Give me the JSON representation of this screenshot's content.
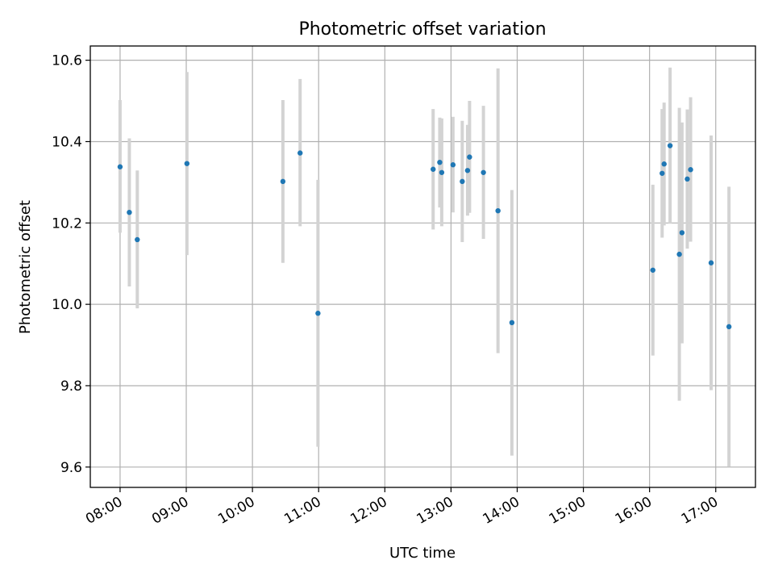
{
  "chart_data": {
    "type": "scatter",
    "title": "Photometric offset variation",
    "xlabel": "UTC time",
    "ylabel": "Photometric offset",
    "x_unit": "hours (UTC)",
    "xlim": [
      7.55,
      17.6
    ],
    "ylim": [
      9.55,
      10.635
    ],
    "grid": true,
    "x_ticks": [
      {
        "value": 8,
        "label": "08:00"
      },
      {
        "value": 9,
        "label": "09:00"
      },
      {
        "value": 10,
        "label": "10:00"
      },
      {
        "value": 11,
        "label": "11:00"
      },
      {
        "value": 12,
        "label": "12:00"
      },
      {
        "value": 13,
        "label": "13:00"
      },
      {
        "value": 14,
        "label": "14:00"
      },
      {
        "value": 15,
        "label": "15:00"
      },
      {
        "value": 16,
        "label": "16:00"
      },
      {
        "value": 17,
        "label": "17:00"
      }
    ],
    "y_ticks": [
      {
        "value": 9.6,
        "label": "9.6"
      },
      {
        "value": 9.8,
        "label": "9.8"
      },
      {
        "value": 10.0,
        "label": "10.0"
      },
      {
        "value": 10.2,
        "label": "10.2"
      },
      {
        "value": 10.4,
        "label": "10.4"
      },
      {
        "value": 10.6,
        "label": "10.6"
      }
    ],
    "series": [
      {
        "name": "offset",
        "color": "#1f77b4",
        "errorbar_color": "#d3d3d3",
        "points": [
          {
            "x": 8.0,
            "y": 10.338,
            "lo": 10.176,
            "hi": 10.502
          },
          {
            "x": 8.14,
            "y": 10.226,
            "lo": 10.044,
            "hi": 10.408
          },
          {
            "x": 8.26,
            "y": 10.159,
            "lo": 9.99,
            "hi": 10.329
          },
          {
            "x": 9.01,
            "y": 10.346,
            "lo": 10.121,
            "hi": 10.571
          },
          {
            "x": 10.46,
            "y": 10.302,
            "lo": 10.102,
            "hi": 10.502
          },
          {
            "x": 10.72,
            "y": 10.372,
            "lo": 10.192,
            "hi": 10.554
          },
          {
            "x": 10.99,
            "y": 9.978,
            "lo": 9.65,
            "hi": 10.306
          },
          {
            "x": 12.73,
            "y": 10.332,
            "lo": 10.184,
            "hi": 10.48
          },
          {
            "x": 12.83,
            "y": 10.349,
            "lo": 10.238,
            "hi": 10.459
          },
          {
            "x": 12.86,
            "y": 10.324,
            "lo": 10.192,
            "hi": 10.457
          },
          {
            "x": 13.03,
            "y": 10.343,
            "lo": 10.226,
            "hi": 10.461
          },
          {
            "x": 13.17,
            "y": 10.302,
            "lo": 10.153,
            "hi": 10.451
          },
          {
            "x": 13.25,
            "y": 10.329,
            "lo": 10.218,
            "hi": 10.441
          },
          {
            "x": 13.28,
            "y": 10.362,
            "lo": 10.225,
            "hi": 10.5
          },
          {
            "x": 13.49,
            "y": 10.324,
            "lo": 10.161,
            "hi": 10.488
          },
          {
            "x": 13.71,
            "y": 10.23,
            "lo": 9.88,
            "hi": 10.58
          },
          {
            "x": 13.92,
            "y": 9.955,
            "lo": 9.628,
            "hi": 10.281
          },
          {
            "x": 16.05,
            "y": 10.084,
            "lo": 9.874,
            "hi": 10.294
          },
          {
            "x": 16.19,
            "y": 10.322,
            "lo": 10.164,
            "hi": 10.48
          },
          {
            "x": 16.22,
            "y": 10.345,
            "lo": 10.194,
            "hi": 10.496
          },
          {
            "x": 16.31,
            "y": 10.39,
            "lo": 10.198,
            "hi": 10.582
          },
          {
            "x": 16.45,
            "y": 10.123,
            "lo": 9.763,
            "hi": 10.483
          },
          {
            "x": 16.49,
            "y": 10.176,
            "lo": 9.904,
            "hi": 10.447
          },
          {
            "x": 16.57,
            "y": 10.308,
            "lo": 10.137,
            "hi": 10.479
          },
          {
            "x": 16.62,
            "y": 10.331,
            "lo": 10.154,
            "hi": 10.509
          },
          {
            "x": 16.93,
            "y": 10.102,
            "lo": 9.789,
            "hi": 10.415
          },
          {
            "x": 17.2,
            "y": 9.945,
            "lo": 9.601,
            "hi": 10.289
          }
        ]
      }
    ]
  }
}
